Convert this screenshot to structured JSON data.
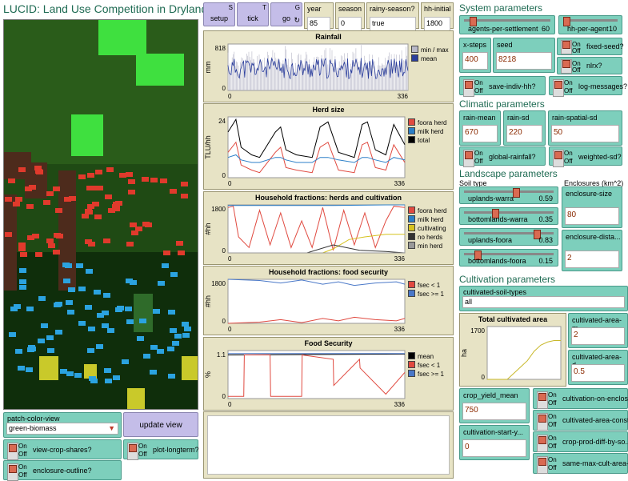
{
  "app_title": "LUCID: Land Use Competition in Drylands",
  "colors": {
    "pasture": "#17420f",
    "clearing": "#2d7a27",
    "bright": "#3fe03f",
    "soil": "#4d2b1c",
    "dark": "#0d2a0a",
    "fooraHerd": "#e03a2c",
    "milkHerd": "#2ba3e0",
    "crop": "#c9c92a"
  },
  "buttons": {
    "setup": "setup",
    "setup_key": "S",
    "tick": "tick",
    "tick_key": "T",
    "go": "go",
    "go_key": "G",
    "update_view": "update view"
  },
  "monitors": [
    {
      "label": "year",
      "value": "85"
    },
    {
      "label": "season",
      "value": "0"
    },
    {
      "label": "rainy-season?",
      "value": "true"
    },
    {
      "label": "hh-initial",
      "value": "1800"
    }
  ],
  "sections": {
    "system": "System parameters",
    "climatic": "Climatic parameters",
    "landscape": "Landscape parameters",
    "soil_type": "Soil type",
    "enclosures": "Enclosures (km^2)",
    "cultivation": "Cultivation parameters"
  },
  "switch_on": "On",
  "switch_off": "Off",
  "sliders": {
    "agents": {
      "label": "agents-per-settlement",
      "value": "60",
      "frac": 0.1
    },
    "hh": {
      "label": "hh-per-agent",
      "value": "10",
      "frac": 0.0
    },
    "uw": {
      "label": "uplands-warra",
      "value": "0.59",
      "frac": 0.59
    },
    "bw": {
      "label": "bottomlands-warra",
      "value": "0.35",
      "frac": 0.35
    },
    "uf": {
      "label": "uplands-foora",
      "value": "0.83",
      "frac": 0.83
    },
    "bf": {
      "label": "bottomlands-foora",
      "value": "0.15",
      "frac": 0.15
    }
  },
  "inputs": {
    "xsteps": {
      "label": "x-steps",
      "value": "400"
    },
    "seed": {
      "label": "seed",
      "value": "8218"
    },
    "rain_mean": {
      "label": "rain-mean",
      "value": "670"
    },
    "rain_sd": {
      "label": "rain-sd",
      "value": "220"
    },
    "rain_spatial": {
      "label": "rain-spatial-sd",
      "value": "50"
    },
    "enc_size": {
      "label": "enclosure-size",
      "value": "80"
    },
    "enc_dist": {
      "label": "enclosure-dista...",
      "value": "2"
    },
    "cam": {
      "label": "cultivated-area-m...",
      "value": "2"
    },
    "cad": {
      "label": "cultivated-area-d...",
      "value": "0.5"
    },
    "yield": {
      "label": "crop_yield_mean",
      "value": "750"
    },
    "cstart": {
      "label": "cultivation-start-y...",
      "value": "0"
    }
  },
  "switches": {
    "fixed_seed": "fixed-seed?",
    "nlrx": "nlrx?",
    "save": "save-indiv-hh?",
    "log": "log-messages?",
    "global_rain": "global-rainfall?",
    "weighted": "weighted-sd?",
    "view_crop": "view-crop-shares?",
    "enclosure": "enclosure-outline?",
    "plot_long": "plot-longterm?",
    "cult_enc": "cultivation-on-enclos...",
    "cult_const": "cultivated-area-const...",
    "crop_prod": "crop-prod-diff-by-so...",
    "same_max": "same-max-cult-area-..."
  },
  "choosers": {
    "patch": {
      "label": "patch-color-view",
      "value": "green-biomass"
    },
    "soil": {
      "label": "cultivated-soil-types",
      "value": "all"
    }
  },
  "plots": {
    "rainfall": {
      "title": "Rainfall",
      "ylabel": "mm",
      "ymax": "818",
      "ymin": "0",
      "xmin": "0",
      "xmax": "336",
      "legend": [
        "min / max",
        "mean"
      ]
    },
    "herd": {
      "title": "Herd size",
      "ylabel": "TLU/hh",
      "ymax": "24",
      "ymin": "0",
      "xmin": "0",
      "xmax": "336",
      "legend": [
        "foora herd",
        "milk herd",
        "total"
      ]
    },
    "hhherd": {
      "title": "Household fractions: herds and cultivation",
      "ylabel": "#hh",
      "ymax": "1800",
      "ymin": "0",
      "xmin": "0",
      "xmax": "336",
      "legend": [
        "foora herd",
        "milk herd",
        "cultivating",
        "no herds",
        "min herd"
      ]
    },
    "hhfood": {
      "title": "Household fractions: food security",
      "ylabel": "#hh",
      "ymax": "1800",
      "ymin": "0",
      "xmin": "0",
      "xmax": "336",
      "legend": [
        "fsec < 1",
        "fsec >= 1"
      ]
    },
    "fsec": {
      "title": "Food Security",
      "ylabel": "%",
      "ymax": "1.1",
      "ymin": "0",
      "xmin": "0",
      "xmax": "336",
      "legend": [
        "mean",
        "fsec < 1",
        "fsec >= 1"
      ]
    },
    "cultarea": {
      "title": "Total cultivated area",
      "ylabel": "ha",
      "ymax": "1700",
      "ymin": "0"
    }
  },
  "chart_data": [
    {
      "type": "line",
      "title": "Rainfall",
      "ylabel": "mm",
      "xlim": [
        0,
        336
      ],
      "ylim": [
        0,
        818
      ],
      "series": [
        {
          "name": "min / max",
          "values": []
        },
        {
          "name": "mean",
          "values": []
        }
      ]
    },
    {
      "type": "line",
      "title": "Herd size",
      "ylabel": "TLU/hh",
      "xlim": [
        0,
        336
      ],
      "ylim": [
        0,
        24
      ],
      "series": [
        {
          "name": "foora herd",
          "x": [
            0,
            15,
            25,
            45,
            60,
            90,
            100,
            110,
            130,
            160,
            175,
            190,
            210,
            240,
            255,
            265,
            280,
            300,
            315,
            336
          ],
          "values": [
            10,
            14,
            5,
            3,
            2,
            10,
            12,
            4,
            3,
            2,
            12,
            14,
            3,
            2,
            13,
            14,
            4,
            3,
            13,
            6
          ]
        },
        {
          "name": "milk herd",
          "x": [
            0,
            15,
            25,
            45,
            60,
            90,
            100,
            110,
            130,
            160,
            175,
            190,
            210,
            240,
            255,
            265,
            280,
            300,
            315,
            336
          ],
          "values": [
            8,
            9,
            7,
            6,
            6,
            8,
            8,
            7,
            6,
            6,
            8,
            8,
            7,
            6,
            8,
            8,
            7,
            6,
            8,
            7
          ]
        },
        {
          "name": "total",
          "x": [
            0,
            15,
            25,
            45,
            60,
            90,
            100,
            110,
            130,
            160,
            175,
            190,
            210,
            240,
            255,
            265,
            280,
            300,
            315,
            336
          ],
          "values": [
            18,
            23,
            12,
            9,
            8,
            18,
            20,
            11,
            9,
            8,
            20,
            22,
            10,
            8,
            21,
            22,
            11,
            9,
            21,
            13
          ]
        }
      ]
    },
    {
      "type": "line",
      "title": "Household fractions: herds and cultivation",
      "ylabel": "#hh",
      "xlim": [
        0,
        336
      ],
      "ylim": [
        0,
        1800
      ],
      "series": [
        {
          "name": "foora herd",
          "x": [
            0,
            10,
            20,
            40,
            60,
            80,
            100,
            120,
            140,
            160,
            180,
            200,
            220,
            240,
            260,
            280,
            300,
            315,
            336
          ],
          "values": [
            1700,
            1750,
            600,
            200,
            1600,
            300,
            1500,
            200,
            1200,
            200,
            1700,
            100,
            1600,
            300,
            1500,
            200,
            1200,
            1750,
            1700
          ]
        },
        {
          "name": "milk herd",
          "x": [
            0,
            100,
            200,
            300,
            336
          ],
          "values": [
            1780,
            1780,
            1780,
            1800,
            1800
          ]
        },
        {
          "name": "cultivating",
          "x": [
            0,
            180,
            200,
            230,
            260,
            300,
            336
          ],
          "values": [
            0,
            0,
            150,
            500,
            600,
            700,
            700
          ]
        },
        {
          "name": "no herds",
          "x": [
            0,
            150,
            200,
            250,
            300,
            336
          ],
          "values": [
            0,
            0,
            300,
            100,
            50,
            0
          ]
        },
        {
          "name": "min herd",
          "x": [
            0,
            336
          ],
          "values": [
            0,
            0
          ]
        }
      ]
    },
    {
      "type": "line",
      "title": "Household fractions: food security",
      "ylabel": "#hh",
      "xlim": [
        0,
        336
      ],
      "ylim": [
        0,
        1800
      ],
      "series": [
        {
          "name": "fsec < 1",
          "x": [
            0,
            60,
            100,
            140,
            180,
            210,
            240,
            280,
            320,
            336
          ],
          "values": [
            0,
            50,
            150,
            30,
            200,
            100,
            250,
            150,
            100,
            200
          ]
        },
        {
          "name": "fsec >= 1",
          "x": [
            0,
            60,
            100,
            140,
            180,
            210,
            240,
            280,
            320,
            336
          ],
          "values": [
            1800,
            1750,
            1650,
            1770,
            1600,
            1700,
            1550,
            1650,
            1700,
            1600
          ]
        }
      ]
    },
    {
      "type": "line",
      "title": "Food Security",
      "ylabel": "%",
      "xlim": [
        0,
        336
      ],
      "ylim": [
        0,
        1.1
      ],
      "series": [
        {
          "name": "mean",
          "x": [
            0,
            336
          ],
          "values": [
            1.0,
            1.02
          ]
        },
        {
          "name": "fsec < 1",
          "x": [
            0,
            30,
            31,
            80,
            81,
            140,
            141,
            200,
            201,
            250,
            251,
            300,
            336
          ],
          "values": [
            0.05,
            0.05,
            1.0,
            1.0,
            0.05,
            0.05,
            1.0,
            0.9,
            0.3,
            0.9,
            0.7,
            0.1,
            0.6
          ]
        },
        {
          "name": "fsec >= 1",
          "x": [
            0,
            336
          ],
          "values": [
            1.03,
            1.03
          ]
        }
      ]
    },
    {
      "type": "line",
      "title": "Total cultivated area",
      "ylabel": "ha",
      "ylim": [
        0,
        1700
      ],
      "series": [
        {
          "values": [
            0,
            0,
            0,
            0,
            200,
            400,
            600,
            900,
            1100,
            1200,
            1250,
            1250
          ]
        }
      ]
    }
  ]
}
